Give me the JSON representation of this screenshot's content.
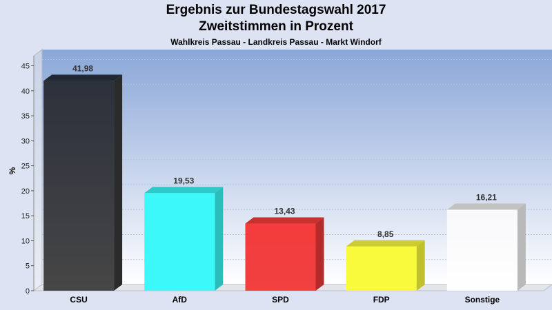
{
  "chart_data": {
    "type": "bar",
    "title": "Ergebnis zur Bundestagswahl 2017",
    "subtitle": "Zweitstimmen in Prozent",
    "caption": "Wahlkreis Passau - Landkreis Passau - Markt Windorf",
    "ylabel": "%",
    "ylim": [
      0,
      47
    ],
    "yticks": [
      0,
      5,
      10,
      15,
      20,
      25,
      30,
      35,
      40,
      45
    ],
    "grid": true,
    "categories": [
      "CSU",
      "AfD",
      "SPD",
      "FDP",
      "Sonstige"
    ],
    "values": [
      41.98,
      19.53,
      13.43,
      8.85,
      16.21
    ],
    "value_labels": [
      "41,98",
      "19,53",
      "13,43",
      "8,85",
      "16,21"
    ],
    "colors": [
      "#3a3a3a",
      "#3cf8f8",
      "#f23a3a",
      "#fafa3c",
      "#f7f7fa"
    ]
  }
}
